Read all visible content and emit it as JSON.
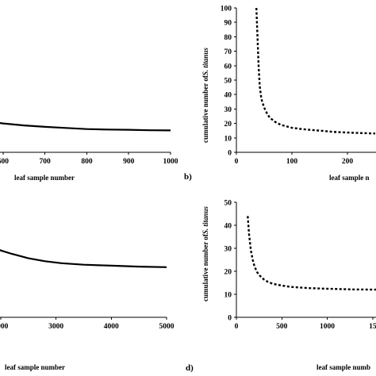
{
  "chart_data": [
    {
      "panel": "a",
      "type": "line",
      "xlabel": "leaf sample number",
      "ylabel": "",
      "xlim": [
        460,
        1000
      ],
      "ylim": [
        0,
        100
      ],
      "xticks": [
        "500",
        "600",
        "700",
        "800",
        "900",
        "1000"
      ],
      "xtick_values": [
        500,
        600,
        700,
        800,
        900,
        1000
      ],
      "style": "solid",
      "x": [
        460,
        500,
        540,
        600,
        650,
        700,
        750,
        800,
        850,
        900,
        950,
        1000
      ],
      "y": [
        18.2,
        15.6,
        14.0,
        12.7,
        11.8,
        11.2,
        10.7,
        10.2,
        10.0,
        9.9,
        9.7,
        9.6
      ]
    },
    {
      "panel": "b",
      "label": "b)",
      "type": "line",
      "xlabel": "leaf sample n",
      "ylabel_prefix": "cumulative number of",
      "ylabel_species": "S. titanus",
      "xlim": [
        0,
        260
      ],
      "ylim": [
        0,
        100
      ],
      "xticks": [
        "0",
        "100",
        "200"
      ],
      "xtick_values": [
        0,
        100,
        200
      ],
      "yticks": [
        "0",
        "10",
        "20",
        "30",
        "40",
        "50",
        "60",
        "70",
        "80",
        "90",
        "100"
      ],
      "ytick_values": [
        0,
        10,
        20,
        30,
        40,
        50,
        60,
        70,
        80,
        90,
        100
      ],
      "style": "dashed",
      "x": [
        36,
        38,
        40,
        42,
        45,
        50,
        55,
        60,
        70,
        80,
        100,
        120,
        150,
        180,
        210,
        250
      ],
      "y": [
        100,
        80,
        60,
        46,
        37,
        31,
        27,
        24,
        21,
        19,
        17,
        16,
        15,
        14,
        13.5,
        13
      ]
    },
    {
      "panel": "c",
      "type": "line",
      "xlabel": "leaf sample number",
      "ylabel": "",
      "xlim": [
        1700,
        5000
      ],
      "ylim": [
        0,
        50
      ],
      "xticks": [
        "2000",
        "3000",
        "4000",
        "5000"
      ],
      "xtick_values": [
        2000,
        3000,
        4000,
        5000
      ],
      "style": "solid",
      "x": [
        1700,
        1800,
        2000,
        2200,
        2500,
        2800,
        3100,
        3500,
        4000,
        4500,
        5000
      ],
      "y": [
        15.8,
        14.8,
        13.6,
        12.9,
        12.0,
        11.4,
        11.0,
        10.7,
        10.5,
        10.3,
        10.2
      ]
    },
    {
      "panel": "d",
      "label": "d)",
      "type": "line",
      "xlabel": "leaf sample numb",
      "ylabel_prefix": "cumulative number of",
      "ylabel_species": "S. titanus",
      "xlim": [
        0,
        1650
      ],
      "ylim": [
        0,
        50
      ],
      "xticks": [
        "0",
        "500",
        "1000",
        "15"
      ],
      "xtick_values": [
        0,
        500,
        1000,
        1500
      ],
      "yticks": [
        "0",
        "10",
        "20",
        "30",
        "40",
        "50"
      ],
      "ytick_values": [
        0,
        10,
        20,
        30,
        40,
        50
      ],
      "style": "dashed",
      "x": [
        125,
        140,
        160,
        180,
        200,
        230,
        260,
        300,
        350,
        400,
        500,
        600,
        800,
        1000,
        1300,
        1650
      ],
      "y": [
        44,
        36,
        29,
        25,
        22,
        19.5,
        18,
        16.5,
        15.3,
        14.6,
        13.8,
        13.2,
        12.7,
        12.4,
        12.1,
        12.0
      ]
    }
  ]
}
